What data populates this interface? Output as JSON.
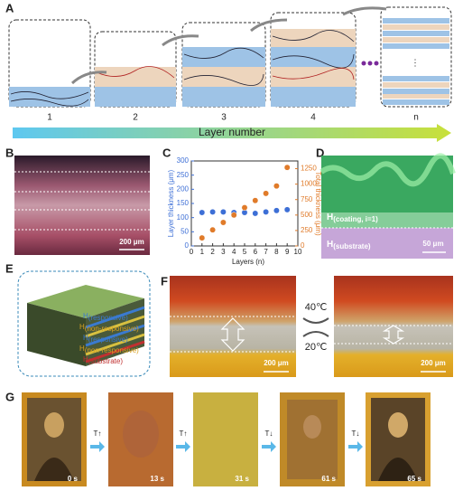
{
  "panel_a": {
    "label": "A",
    "steps": [
      "1",
      "2",
      "3",
      "4",
      "n"
    ],
    "axis_title": "Layer number"
  },
  "panel_b": {
    "label": "B",
    "scale": "200 μm"
  },
  "panel_c": {
    "label": "C"
  },
  "chart_data": {
    "type": "scatter",
    "x_label": "Layers (n)",
    "y_label": "Layer thickness (μm)",
    "y2_label": "Total thickness (μm)",
    "x": [
      1,
      2,
      3,
      4,
      5,
      6,
      7,
      8,
      9
    ],
    "series": [
      {
        "name": "Layer thickness",
        "color": "#3d6fd6",
        "values": [
          118,
          120,
          120,
          118,
          118,
          115,
          120,
          125,
          128
        ]
      },
      {
        "name": "Total thickness",
        "color": "#e07b2a",
        "axis": "y2",
        "values": [
          130,
          260,
          380,
          500,
          620,
          735,
          850,
          970,
          1270
        ]
      }
    ],
    "xlim": [
      0,
      10
    ],
    "xticks": [
      0,
      1,
      2,
      3,
      4,
      5,
      6,
      7,
      8,
      9,
      10
    ],
    "ylim": [
      0,
      300
    ],
    "yticks": [
      0,
      50,
      100,
      150,
      200,
      250,
      300
    ],
    "y2lim": [
      0,
      1375
    ],
    "y2ticks": [
      0,
      250,
      500,
      750,
      1000,
      1250
    ]
  },
  "panel_d": {
    "label": "D",
    "coating": {
      "base": "H",
      "sub": "(coating, i=1)"
    },
    "substrate": {
      "base": "H",
      "sub": "(substrate)"
    },
    "scale": "50 μm"
  },
  "panel_e": {
    "label": "E",
    "layers": [
      {
        "base": "H",
        "sub": "(responsive)"
      },
      {
        "base": "H",
        "sub": "(non-responsive)"
      },
      {
        "base": "H",
        "sub": "(responsive)"
      },
      {
        "base": "H",
        "sub": "(non-responsive)"
      },
      {
        "base": "H",
        "sub": "(substrate)"
      }
    ]
  },
  "panel_f": {
    "label": "F",
    "hot": "40℃",
    "cold": "20℃",
    "scale_left": "200 μm",
    "scale_right": "200 μm"
  },
  "panel_g": {
    "label": "G",
    "times": [
      "0 s",
      "13 s",
      "31 s",
      "61 s",
      "65 s"
    ],
    "arrows": [
      "T↑",
      "T↑",
      "T↓",
      "T↓"
    ]
  }
}
